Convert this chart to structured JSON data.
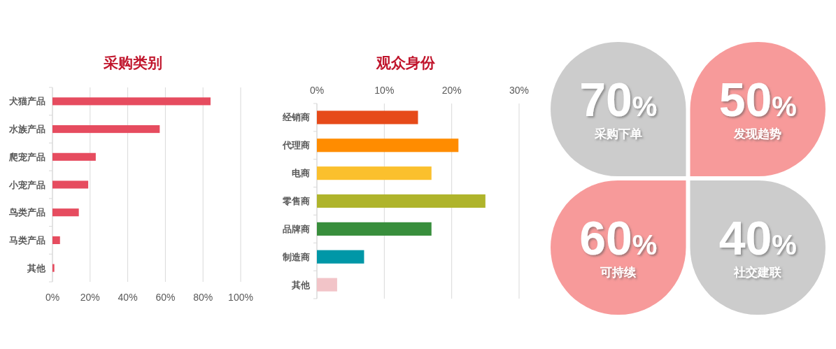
{
  "chart_data": [
    {
      "type": "bar",
      "orientation": "horizontal",
      "title": "采购类别",
      "categories": [
        "犬猫产品",
        "水族产品",
        "爬宠产品",
        "小宠产品",
        "鸟类产品",
        "马类产品",
        "其他"
      ],
      "values": [
        84,
        57,
        23,
        19,
        14,
        4,
        1
      ],
      "color": "#e64c5f",
      "xlim": [
        0,
        100
      ],
      "xticks": [
        {
          "value": 0,
          "label": "0%"
        },
        {
          "value": 20,
          "label": "20%"
        },
        {
          "value": 40,
          "label": "40%"
        },
        {
          "value": 60,
          "label": "60%"
        },
        {
          "value": 80,
          "label": "80%"
        },
        {
          "value": 100,
          "label": "100%"
        }
      ],
      "grid": "x"
    },
    {
      "type": "bar",
      "orientation": "horizontal",
      "title": "观众身份",
      "categories": [
        "经销商",
        "代理商",
        "电商",
        "零售商",
        "品牌商",
        "制造商",
        "其他"
      ],
      "series": [
        {
          "values": [
            15,
            21,
            17,
            25,
            17,
            7,
            3
          ],
          "colors": [
            "#e64a19",
            "#ff8c00",
            "#fbc02d",
            "#afb42b",
            "#388e3c",
            "#0097a7",
            "#f2c4c8"
          ],
          "axis": "x2"
        }
      ],
      "x2lim": [
        0,
        30
      ],
      "x2ticks": [
        {
          "value": 0,
          "label": "0%"
        },
        {
          "value": 10,
          "label": "10%"
        },
        {
          "value": 20,
          "label": "20%"
        },
        {
          "value": 30,
          "label": "30%"
        }
      ],
      "grid": "x"
    },
    {
      "type": "other",
      "categories": [
        "采购下单",
        "发现趋势",
        "可持续",
        "社交建联"
      ],
      "values": [
        70,
        50,
        60,
        40
      ],
      "value_labels": [
        "70%",
        "50%",
        "60%",
        "40%"
      ],
      "colors": [
        "#cccccc",
        "#f79a9a",
        "#f79a9a",
        "#cccccc"
      ]
    }
  ]
}
